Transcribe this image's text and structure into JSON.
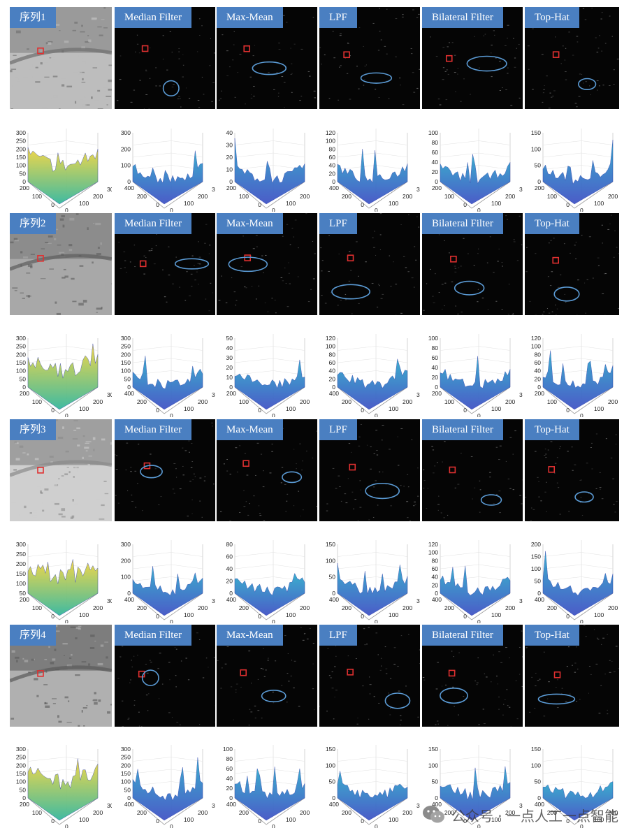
{
  "columns": [
    "Median Filter",
    "Max-Mean",
    "LPF",
    "Bilateral Filter",
    "Top-Hat"
  ],
  "sequences": [
    {
      "label": "序列1",
      "surface_z_ticks": [
        [
          "300",
          "250",
          "200",
          "150",
          "100",
          "50",
          "0"
        ],
        [
          "300",
          "200",
          "100",
          "0"
        ],
        [
          "40",
          "30",
          "20",
          "10",
          "0"
        ],
        [
          "120",
          "100",
          "80",
          "60",
          "40",
          "20",
          "0"
        ],
        [
          "100",
          "80",
          "60",
          "40",
          "20",
          "0"
        ],
        [
          "150",
          "100",
          "50",
          "0"
        ]
      ]
    },
    {
      "label": "序列2",
      "surface_z_ticks": [
        [
          "300",
          "250",
          "200",
          "150",
          "100",
          "50",
          "0"
        ],
        [
          "300",
          "250",
          "200",
          "150",
          "100",
          "50",
          "0"
        ],
        [
          "50",
          "40",
          "30",
          "20",
          "10",
          "0"
        ],
        [
          "120",
          "100",
          "80",
          "60",
          "40",
          "20",
          "0"
        ],
        [
          "100",
          "80",
          "60",
          "40",
          "20",
          "0"
        ],
        [
          "120",
          "100",
          "80",
          "60",
          "40",
          "20",
          "0"
        ]
      ]
    },
    {
      "label": "序列3",
      "surface_z_ticks": [
        [
          "300",
          "250",
          "200",
          "150",
          "100",
          "50"
        ],
        [
          "300",
          "200",
          "100",
          "0"
        ],
        [
          "80",
          "60",
          "40",
          "20",
          "0"
        ],
        [
          "150",
          "100",
          "50",
          "0"
        ],
        [
          "120",
          "100",
          "80",
          "60",
          "40",
          "20",
          "0"
        ],
        [
          "200",
          "150",
          "100",
          "50",
          "0"
        ]
      ]
    },
    {
      "label": "序列4",
      "surface_z_ticks": [
        [
          "300",
          "250",
          "200",
          "150",
          "100",
          "50",
          "0"
        ],
        [
          "300",
          "250",
          "200",
          "150",
          "100",
          "50",
          "0"
        ],
        [
          "100",
          "80",
          "60",
          "40",
          "20",
          "0"
        ],
        [
          "150",
          "100",
          "50",
          "0"
        ],
        [
          "150",
          "100",
          "50",
          "0"
        ],
        [
          "150",
          "100",
          "50",
          "0"
        ]
      ]
    }
  ],
  "surface_axes": {
    "y_ticks_short": [
      "200",
      "100",
      "0"
    ],
    "x_ticks_short": [
      "0",
      "100",
      "200",
      "300"
    ],
    "y_ticks_long": [
      "400",
      "200",
      "0"
    ],
    "x_ticks_long": [
      "0",
      "100",
      "200",
      "300"
    ],
    "x_ticks_200": [
      "0",
      "100",
      "200"
    ]
  },
  "watermark": {
    "text": "公众号 · 一点人工一点智能"
  },
  "colors": {
    "label_bg": "#4a7fc1",
    "target_box": "#e03030",
    "detection_ellipse": "#5b9bd5"
  }
}
